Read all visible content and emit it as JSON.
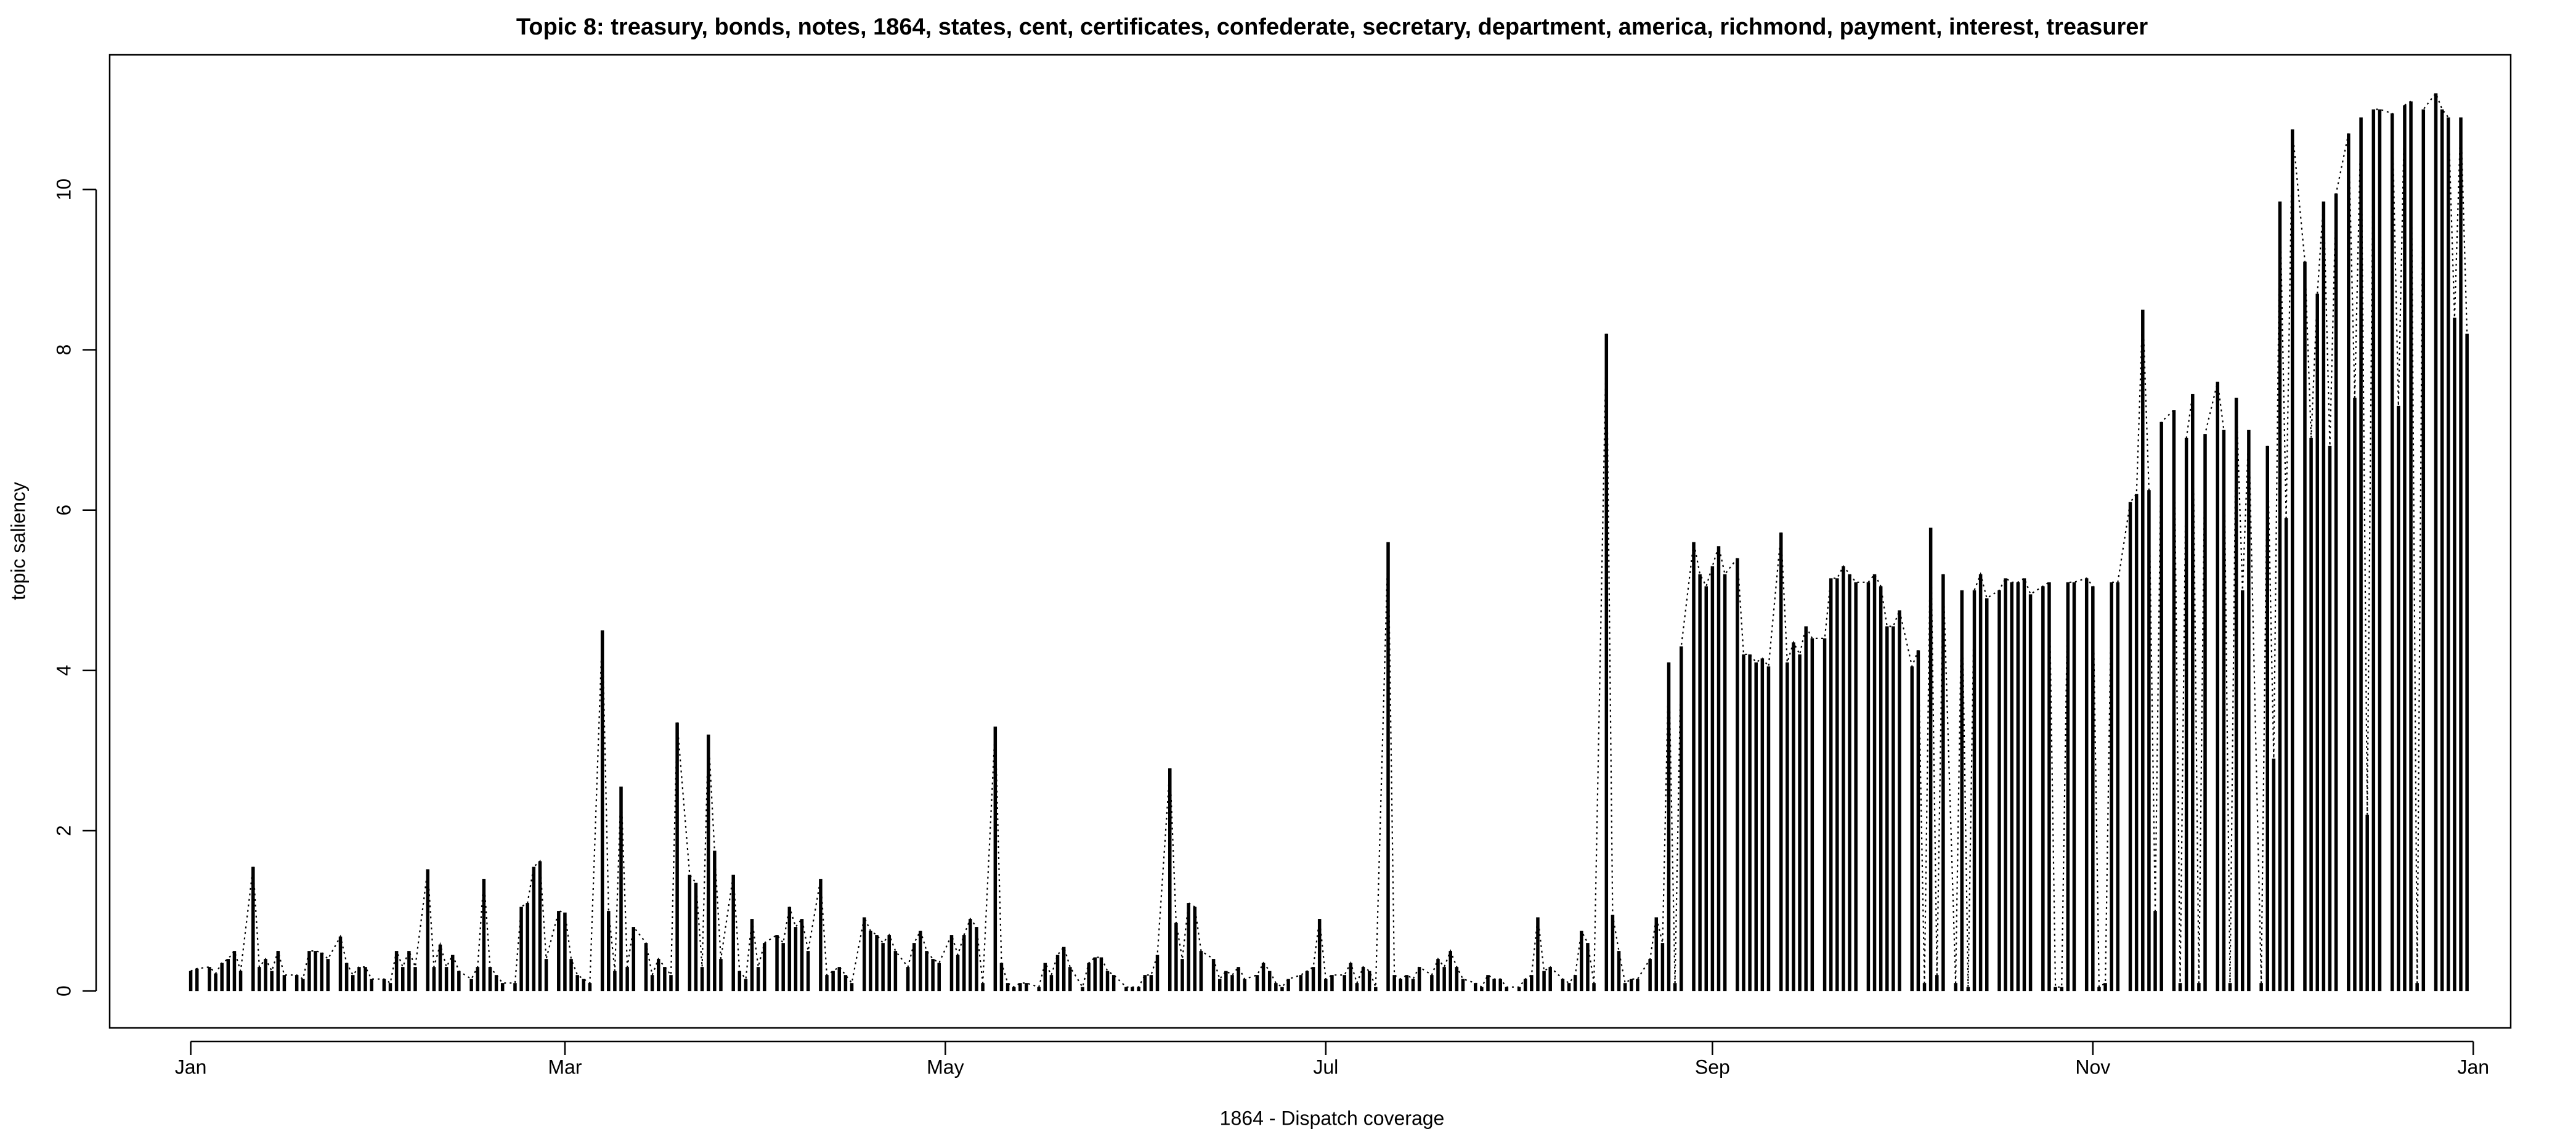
{
  "chart_data": {
    "type": "bar",
    "title": "Topic 8: treasury, bonds, notes, 1864, states, cent, certificates, confederate, secretary, department, america, richmond, payment, interest, treasurer",
    "x_label": "1864 - Dispatch coverage",
    "y_label": "topic saliency",
    "color": "#000000",
    "line_style": "dotted",
    "xlim": [
      -12,
      373
    ],
    "ylim": [
      -0.46,
      11.68
    ],
    "xticks": [
      {
        "value": 1,
        "label": "Jan"
      },
      {
        "value": 61,
        "label": "Mar"
      },
      {
        "value": 122,
        "label": "May"
      },
      {
        "value": 183,
        "label": "Jul"
      },
      {
        "value": 245,
        "label": "Sep"
      },
      {
        "value": 306,
        "label": "Nov"
      },
      {
        "value": 367,
        "label": "Jan"
      }
    ],
    "yticks": [
      0,
      2,
      4,
      6,
      8,
      10
    ],
    "x": [
      1,
      2,
      4,
      5,
      6,
      7,
      8,
      9,
      11,
      12,
      13,
      14,
      15,
      16,
      18,
      19,
      20,
      21,
      22,
      23,
      25,
      26,
      27,
      28,
      29,
      30,
      32,
      33,
      34,
      35,
      36,
      37,
      39,
      40,
      41,
      42,
      43,
      44,
      46,
      47,
      48,
      49,
      50,
      51,
      53,
      54,
      55,
      56,
      57,
      58,
      60,
      61,
      62,
      63,
      64,
      65,
      67,
      68,
      69,
      70,
      71,
      72,
      74,
      75,
      76,
      77,
      78,
      79,
      81,
      82,
      83,
      84,
      85,
      86,
      88,
      89,
      90,
      91,
      92,
      93,
      95,
      96,
      97,
      98,
      99,
      100,
      102,
      103,
      104,
      105,
      106,
      107,
      109,
      110,
      111,
      112,
      113,
      114,
      116,
      117,
      118,
      119,
      120,
      121,
      123,
      124,
      125,
      126,
      127,
      128,
      130,
      131,
      132,
      133,
      134,
      135,
      137,
      138,
      139,
      140,
      141,
      142,
      144,
      145,
      146,
      147,
      148,
      149,
      151,
      152,
      153,
      154,
      155,
      156,
      158,
      159,
      160,
      161,
      162,
      163,
      165,
      166,
      167,
      168,
      169,
      170,
      172,
      173,
      174,
      175,
      176,
      177,
      179,
      180,
      181,
      182,
      183,
      184,
      186,
      187,
      188,
      189,
      190,
      191,
      193,
      194,
      195,
      196,
      197,
      198,
      200,
      201,
      202,
      203,
      204,
      205,
      207,
      208,
      209,
      210,
      211,
      212,
      214,
      215,
      216,
      217,
      218,
      219,
      221,
      222,
      223,
      224,
      225,
      226,
      228,
      229,
      230,
      231,
      232,
      233,
      235,
      236,
      237,
      238,
      239,
      240,
      242,
      243,
      244,
      245,
      246,
      247,
      249,
      250,
      251,
      252,
      253,
      254,
      256,
      257,
      258,
      259,
      260,
      261,
      263,
      264,
      265,
      266,
      267,
      268,
      270,
      271,
      272,
      273,
      274,
      275,
      277,
      278,
      279,
      280,
      281,
      282,
      284,
      285,
      286,
      287,
      288,
      289,
      291,
      292,
      293,
      294,
      295,
      296,
      298,
      299,
      300,
      301,
      302,
      303,
      305,
      306,
      307,
      308,
      309,
      310,
      312,
      313,
      314,
      315,
      316,
      317,
      319,
      320,
      321,
      322,
      323,
      324,
      326,
      327,
      328,
      329,
      330,
      331,
      333,
      334,
      335,
      336,
      337,
      338,
      340,
      341,
      342,
      343,
      344,
      345,
      347,
      348,
      349,
      350,
      351,
      352,
      354,
      355,
      356,
      357,
      358,
      359,
      361,
      362,
      363,
      364,
      365,
      366
    ],
    "values": [
      0.25,
      0.28,
      0.3,
      0.22,
      0.35,
      0.4,
      0.5,
      0.25,
      1.55,
      0.3,
      0.4,
      0.25,
      0.5,
      0.2,
      0.2,
      0.15,
      0.5,
      0.5,
      0.48,
      0.4,
      0.68,
      0.35,
      0.2,
      0.3,
      0.3,
      0.15,
      0.15,
      0.1,
      0.5,
      0.3,
      0.5,
      0.3,
      1.52,
      0.3,
      0.58,
      0.3,
      0.45,
      0.25,
      0.15,
      0.3,
      1.4,
      0.3,
      0.2,
      0.1,
      0.1,
      1.05,
      1.1,
      1.55,
      1.62,
      0.4,
      1.0,
      0.98,
      0.4,
      0.2,
      0.15,
      0.1,
      4.5,
      1.0,
      0.25,
      2.55,
      0.3,
      0.8,
      0.6,
      0.2,
      0.4,
      0.3,
      0.2,
      3.35,
      1.45,
      1.35,
      0.3,
      3.2,
      1.75,
      0.4,
      1.45,
      0.25,
      0.15,
      0.9,
      0.3,
      0.6,
      0.7,
      0.6,
      1.05,
      0.8,
      0.9,
      0.5,
      1.4,
      0.2,
      0.25,
      0.3,
      0.2,
      0.1,
      0.92,
      0.75,
      0.7,
      0.6,
      0.7,
      0.5,
      0.3,
      0.6,
      0.75,
      0.5,
      0.4,
      0.35,
      0.7,
      0.45,
      0.7,
      0.9,
      0.8,
      0.1,
      3.3,
      0.35,
      0.1,
      0.05,
      0.1,
      0.1,
      0.05,
      0.35,
      0.2,
      0.45,
      0.55,
      0.3,
      0.05,
      0.35,
      0.42,
      0.42,
      0.25,
      0.2,
      0.05,
      0.05,
      0.05,
      0.2,
      0.2,
      0.45,
      2.78,
      0.85,
      0.4,
      1.1,
      1.05,
      0.5,
      0.4,
      0.15,
      0.25,
      0.2,
      0.3,
      0.15,
      0.2,
      0.35,
      0.25,
      0.1,
      0.05,
      0.15,
      0.2,
      0.25,
      0.3,
      0.9,
      0.15,
      0.2,
      0.2,
      0.35,
      0.1,
      0.3,
      0.25,
      0.05,
      5.6,
      0.2,
      0.15,
      0.2,
      0.15,
      0.3,
      0.2,
      0.4,
      0.3,
      0.5,
      0.3,
      0.15,
      0.1,
      0.05,
      0.2,
      0.15,
      0.15,
      0.05,
      0.05,
      0.15,
      0.2,
      0.92,
      0.25,
      0.3,
      0.15,
      0.1,
      0.2,
      0.75,
      0.6,
      0.1,
      8.2,
      0.95,
      0.5,
      0.1,
      0.15,
      0.15,
      0.4,
      0.92,
      0.6,
      4.1,
      0.1,
      4.3,
      5.6,
      5.2,
      5.05,
      5.3,
      5.55,
      5.2,
      5.4,
      4.2,
      4.2,
      4.1,
      4.15,
      4.05,
      5.72,
      4.1,
      4.35,
      4.2,
      4.55,
      4.4,
      4.4,
      5.15,
      5.15,
      5.3,
      5.2,
      5.1,
      5.1,
      5.2,
      5.05,
      4.55,
      4.55,
      4.75,
      4.05,
      4.25,
      0.1,
      5.78,
      0.2,
      5.2,
      0.1,
      5.0,
      0.05,
      5.0,
      5.2,
      4.9,
      5.0,
      5.15,
      5.1,
      5.1,
      5.15,
      4.95,
      5.05,
      5.1,
      0.05,
      0.05,
      5.1,
      5.1,
      5.15,
      5.05,
      0.05,
      0.1,
      5.1,
      5.1,
      6.1,
      6.2,
      8.5,
      6.25,
      1.0,
      7.1,
      7.25,
      0.1,
      6.9,
      7.45,
      0.1,
      6.95,
      7.6,
      7.0,
      0.1,
      7.4,
      5.0,
      7.0,
      0.1,
      6.8,
      2.9,
      9.85,
      5.9,
      10.75,
      9.1,
      6.9,
      8.7,
      9.85,
      6.8,
      9.95,
      10.7,
      7.4,
      10.9,
      2.2,
      11.0,
      11.0,
      10.95,
      7.3,
      11.05,
      11.1,
      0.1,
      11.0,
      11.2,
      11.0,
      10.9,
      8.4,
      10.9,
      8.2
    ]
  }
}
